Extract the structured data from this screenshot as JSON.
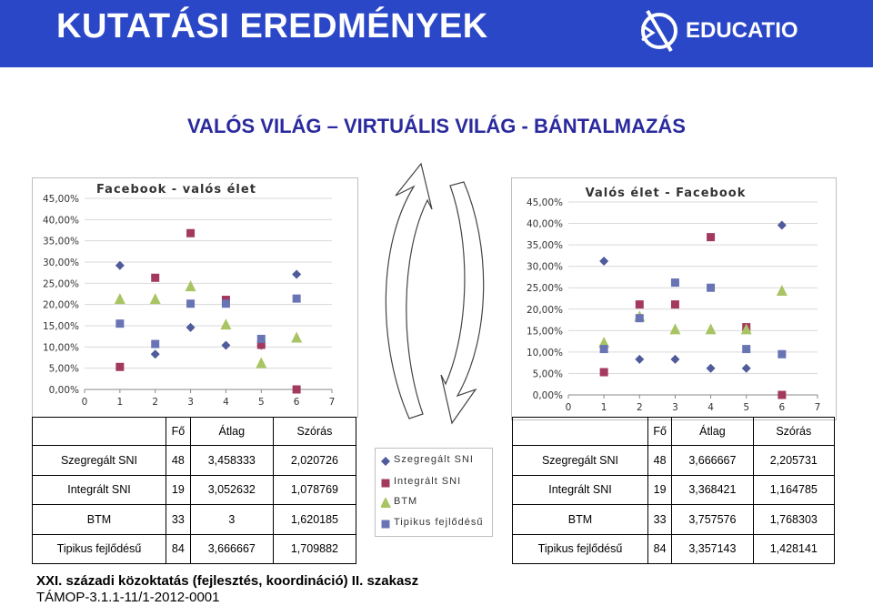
{
  "header": {
    "title": "KUTATÁSI EREDMÉNYEK",
    "logo_text": "EDUCATIO"
  },
  "subtitle": "VALÓS VILÁG – VIRTUÁLIS VILÁG - BÁNTALMAZÁS",
  "colors": {
    "header_bg": "#2a47c8",
    "series": [
      "#4f5b9a",
      "#a3395f",
      "#a9c463",
      "#6874b4"
    ]
  },
  "legend": [
    "Szegregált SNI",
    "Integrált SNI",
    "BTM",
    "Tipikus fejlődésű"
  ],
  "chart_data": [
    {
      "type": "scatter",
      "title": "Facebook - valós élet",
      "xlim": [
        0,
        7
      ],
      "ylim": [
        0,
        45
      ],
      "x_ticks": [
        "0",
        "1",
        "2",
        "3",
        "4",
        "5",
        "6",
        "7"
      ],
      "y_ticks": [
        "0,00%",
        "5,00%",
        "10,00%",
        "15,00%",
        "20,00%",
        "25,00%",
        "30,00%",
        "35,00%",
        "40,00%",
        "45,00%"
      ],
      "series": [
        {
          "name": "Szegregált SNI",
          "marker": "diamond",
          "points": [
            [
              1,
              29.2
            ],
            [
              2,
              8.3
            ],
            [
              3,
              14.6
            ],
            [
              4,
              10.4
            ],
            [
              5,
              10.4
            ],
            [
              6,
              27.1
            ]
          ]
        },
        {
          "name": "Integrált SNI",
          "marker": "square",
          "points": [
            [
              1,
              5.3
            ],
            [
              2,
              26.3
            ],
            [
              3,
              36.8
            ],
            [
              4,
              21.1
            ],
            [
              5,
              10.5
            ],
            [
              6,
              0
            ]
          ]
        },
        {
          "name": "BTM",
          "marker": "triangle",
          "points": [
            [
              1,
              21.2
            ],
            [
              2,
              21.2
            ],
            [
              3,
              24.2
            ],
            [
              4,
              15.2
            ],
            [
              5,
              6.1
            ],
            [
              6,
              12.1
            ]
          ]
        },
        {
          "name": "Tipikus fejlődésű",
          "marker": "square",
          "points": [
            [
              1,
              15.5
            ],
            [
              2,
              10.7
            ],
            [
              3,
              20.2
            ],
            [
              4,
              20.2
            ],
            [
              5,
              11.9
            ],
            [
              6,
              21.4
            ]
          ]
        }
      ]
    },
    {
      "type": "scatter",
      "title": "Valós élet - Facebook",
      "xlim": [
        0,
        7
      ],
      "ylim": [
        0,
        45
      ],
      "x_ticks": [
        "0",
        "1",
        "2",
        "3",
        "4",
        "5",
        "6",
        "7"
      ],
      "y_ticks": [
        "0,00%",
        "5,00%",
        "10,00%",
        "15,00%",
        "20,00%",
        "25,00%",
        "30,00%",
        "35,00%",
        "40,00%",
        "45,00%"
      ],
      "series": [
        {
          "name": "Szegregált SNI",
          "marker": "diamond",
          "points": [
            [
              1,
              31.2
            ],
            [
              2,
              8.3
            ],
            [
              3,
              8.3
            ],
            [
              4,
              6.2
            ],
            [
              5,
              6.2
            ],
            [
              6,
              39.6
            ]
          ]
        },
        {
          "name": "Integrált SNI",
          "marker": "square",
          "points": [
            [
              1,
              5.3
            ],
            [
              2,
              21.1
            ],
            [
              3,
              21.1
            ],
            [
              4,
              36.8
            ],
            [
              5,
              15.8
            ],
            [
              6,
              0
            ]
          ]
        },
        {
          "name": "BTM",
          "marker": "triangle",
          "points": [
            [
              1,
              12.1
            ],
            [
              2,
              18.2
            ],
            [
              3,
              15.2
            ],
            [
              4,
              15.2
            ],
            [
              5,
              15.2
            ],
            [
              6,
              24.2
            ]
          ]
        },
        {
          "name": "Tipikus fejlődésű",
          "marker": "square",
          "points": [
            [
              1,
              10.7
            ],
            [
              2,
              17.9
            ],
            [
              3,
              26.2
            ],
            [
              4,
              25.0
            ],
            [
              5,
              10.7
            ],
            [
              6,
              9.5
            ]
          ]
        }
      ]
    }
  ],
  "tables": [
    {
      "headers": [
        "",
        "Fő",
        "Átlag",
        "Szórás"
      ],
      "rows": [
        [
          "Szegregált SNI",
          "48",
          "3,458333",
          "2,020726"
        ],
        [
          "Integrált SNI",
          "19",
          "3,052632",
          "1,078769"
        ],
        [
          "BTM",
          "33",
          "3",
          "1,620185"
        ],
        [
          "Tipikus fejlődésű",
          "84",
          "3,666667",
          "1,709882"
        ]
      ]
    },
    {
      "headers": [
        "",
        "Fő",
        "Átlag",
        "Szórás"
      ],
      "rows": [
        [
          "Szegregált SNI",
          "48",
          "3,666667",
          "2,205731"
        ],
        [
          "Integrált SNI",
          "19",
          "3,368421",
          "1,164785"
        ],
        [
          "BTM",
          "33",
          "3,757576",
          "1,768303"
        ],
        [
          "Tipikus fejlődésű",
          "84",
          "3,357143",
          "1,428141"
        ]
      ]
    }
  ],
  "footer": {
    "line1": "XXI. századi közoktatás (fejlesztés, koordináció) II. szakasz",
    "line2": "TÁMOP-3.1.1-11/1-2012-0001"
  }
}
